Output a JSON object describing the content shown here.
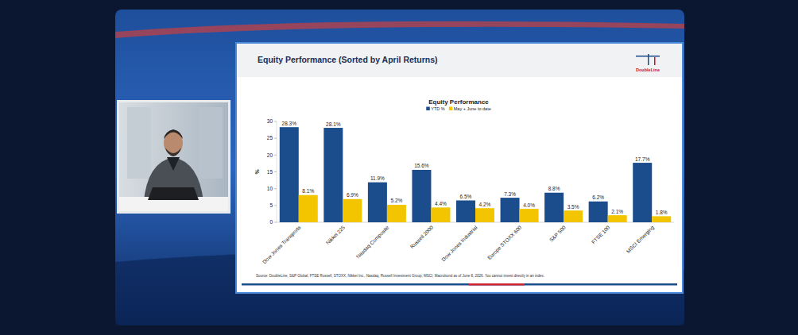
{
  "slide": {
    "title": "Equity Performance (Sorted by April Returns)",
    "logo": "DoubleLine",
    "source": "Source: DoubleLine, S&P Global, FTSE Russell, STOXX, Nikkei Inc., Nasdaq, Russell Investment Group, MSCI, Macrobond as of June 8, 2026. You cannot invest directly in an index."
  },
  "chart_data": {
    "type": "bar",
    "title": "Equity Performance",
    "y_label": "%",
    "categories": [
      "Dow Jones Transports",
      "Nikkei 225",
      "Nasdaq Composite",
      "Russell 2000",
      "Dow Jones Industrial",
      "Europe STOXX 600",
      "S&P 500",
      "FTSE 100",
      "MSCI Emerging"
    ],
    "series": [
      {
        "name": "YTD %",
        "color": "#1b4d8c",
        "values": [
          28.3,
          28.1,
          11.9,
          15.6,
          6.5,
          7.3,
          8.8,
          6.2,
          17.7
        ],
        "value_labels": [
          "28.3%",
          "28.1%",
          "11.9%",
          "15.6%",
          "6.5%",
          "7.3%",
          "8.8%",
          "6.2%",
          "17.7%"
        ]
      },
      {
        "name": "May + June to date",
        "color": "#f2c500",
        "values": [
          8.1,
          6.9,
          5.2,
          4.4,
          4.2,
          4.0,
          3.5,
          2.1,
          1.8
        ],
        "value_labels": [
          "8.1%",
          "6.9%",
          "5.2%",
          "4.4%",
          "4.2%",
          "4.0%",
          "3.5%",
          "2.1%",
          "1.8%"
        ]
      }
    ],
    "ylim": [
      0,
      30
    ],
    "yticks": [
      0,
      5,
      10,
      15,
      20,
      25,
      30
    ],
    "grid": false,
    "legend": "top",
    "data_labels": true
  }
}
